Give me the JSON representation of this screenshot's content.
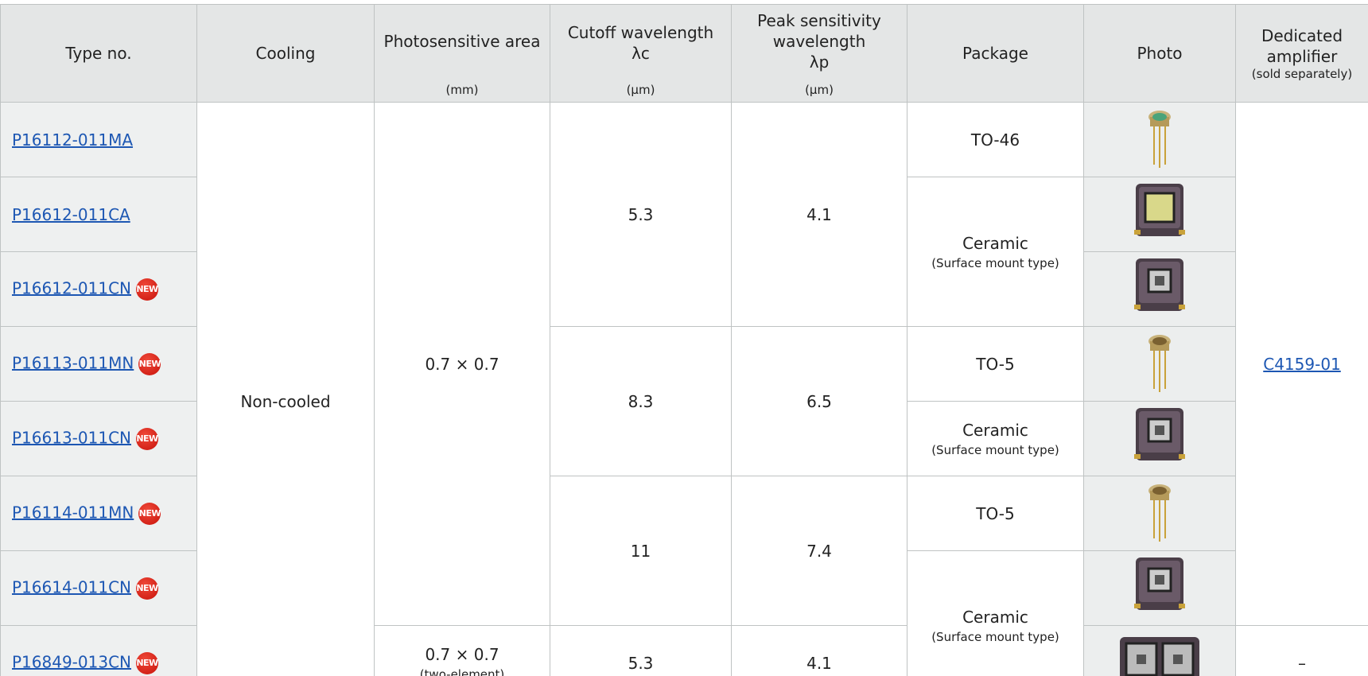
{
  "table": {
    "header": {
      "type_no": "Type no.",
      "cooling": "Cooling",
      "area": {
        "title": "Photosensitive area",
        "unit": "(mm)"
      },
      "cutoff": {
        "title": "Cutoff wavelength",
        "symbol": "λc",
        "unit": "(μm)"
      },
      "peak": {
        "title": "Peak sensitivity wavelength",
        "symbol": "λp",
        "unit": "(μm)"
      },
      "package": "Package",
      "photo": "Photo",
      "amplifier": {
        "title": "Dedicated amplifier",
        "note": "(sold separately)"
      }
    },
    "type_nos": [
      {
        "label": "P16112-011MA"
      },
      {
        "label": "P16612-011CA"
      },
      {
        "label": "P16612-011CN",
        "badge": "NEW"
      },
      {
        "label": "P16113-011MN",
        "badge": "NEW"
      },
      {
        "label": "P16613-011CN",
        "badge": "NEW"
      },
      {
        "label": "P16114-011MN",
        "badge": "NEW"
      },
      {
        "label": "P16614-011CN",
        "badge": "NEW"
      },
      {
        "label": "P16849-013CN",
        "badge": "NEW"
      }
    ],
    "cooling": "Non-cooled",
    "areas": [
      {
        "label": "0.7 × 0.7"
      },
      {
        "label": "0.7 × 0.7",
        "note": "(two-element)"
      }
    ],
    "cutoff": [
      5.3,
      8.3,
      11,
      5.3
    ],
    "peak": [
      4.1,
      6.5,
      7.4,
      4.1
    ],
    "packages": [
      {
        "label": "TO-46"
      },
      {
        "label": "Ceramic",
        "note": "(Surface mount type)"
      },
      {
        "label": "TO-5"
      },
      {
        "label": "Ceramic",
        "note": "(Surface mount type)"
      },
      {
        "label": "TO-5"
      },
      {
        "label": "Ceramic",
        "note": "(Surface mount type)"
      }
    ],
    "amplifiers": [
      "C4159-01",
      "–"
    ]
  }
}
